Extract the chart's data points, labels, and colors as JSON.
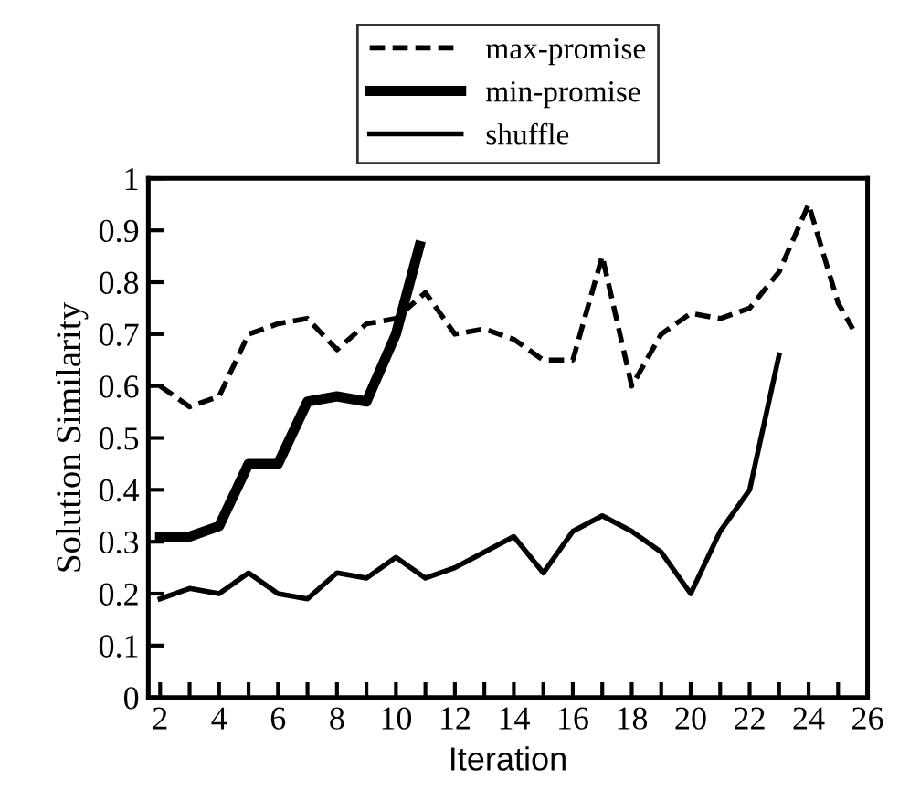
{
  "chart_data": {
    "type": "line",
    "xlabel": "Iteration",
    "ylabel": "Solution Similarity",
    "xlim": [
      1.6,
      26
    ],
    "ylim": [
      0,
      1
    ],
    "xticks": [
      2,
      {
        "value": 3,
        "label": null
      },
      4,
      {
        "value": 5,
        "label": null
      },
      6,
      {
        "value": 7,
        "label": null
      },
      8,
      {
        "value": 9,
        "label": null
      },
      10,
      {
        "value": 11,
        "label": null
      },
      12,
      {
        "value": 13,
        "label": null
      },
      14,
      {
        "value": 15,
        "label": null
      },
      16,
      {
        "value": 17,
        "label": null
      },
      18,
      {
        "value": 19,
        "label": null
      },
      20,
      {
        "value": 21,
        "label": null
      },
      22,
      {
        "value": 23,
        "label": null
      },
      24,
      {
        "value": 25,
        "label": null
      },
      26
    ],
    "yticks": [
      0,
      0.1,
      0.2,
      0.3,
      0.4,
      0.5,
      0.6,
      0.7,
      0.8,
      0.9,
      1
    ],
    "grid": false,
    "legend": "top",
    "marker": "none",
    "series": [
      {
        "name": "max-promise",
        "color": "#000000",
        "line_style": "dashed",
        "x": [
          2,
          3,
          4,
          5,
          6,
          7,
          8,
          9,
          10,
          11,
          12,
          13,
          14,
          15,
          16,
          17,
          18,
          19,
          20,
          21,
          22,
          23,
          24,
          25,
          25.5
        ],
        "values": [
          0.6,
          0.56,
          0.58,
          0.7,
          0.72,
          0.73,
          0.67,
          0.72,
          0.73,
          0.78,
          0.7,
          0.71,
          0.69,
          0.65,
          0.65,
          0.85,
          0.6,
          0.7,
          0.74,
          0.73,
          0.75,
          0.82,
          0.95,
          0.76,
          0.71
        ]
      },
      {
        "name": "min-promise",
        "color": "#000000",
        "line_style": "solid",
        "x": [
          2,
          3,
          4,
          5,
          6,
          7,
          8,
          9,
          10,
          10.8
        ],
        "values": [
          0.31,
          0.31,
          0.33,
          0.45,
          0.45,
          0.57,
          0.58,
          0.57,
          0.7,
          0.87
        ]
      },
      {
        "name": "shuffle",
        "color": "#000000",
        "line_style": "solid",
        "x": [
          2,
          3,
          4,
          5,
          6,
          7,
          8,
          9,
          10,
          11,
          12,
          13,
          14,
          15,
          16,
          17,
          18,
          19,
          20,
          21,
          22,
          23
        ],
        "values": [
          0.19,
          0.21,
          0.2,
          0.24,
          0.2,
          0.19,
          0.24,
          0.23,
          0.27,
          0.23,
          0.25,
          0.28,
          0.31,
          0.24,
          0.32,
          0.35,
          0.32,
          0.28,
          0.2,
          0.32,
          0.4,
          0.66
        ]
      }
    ]
  }
}
